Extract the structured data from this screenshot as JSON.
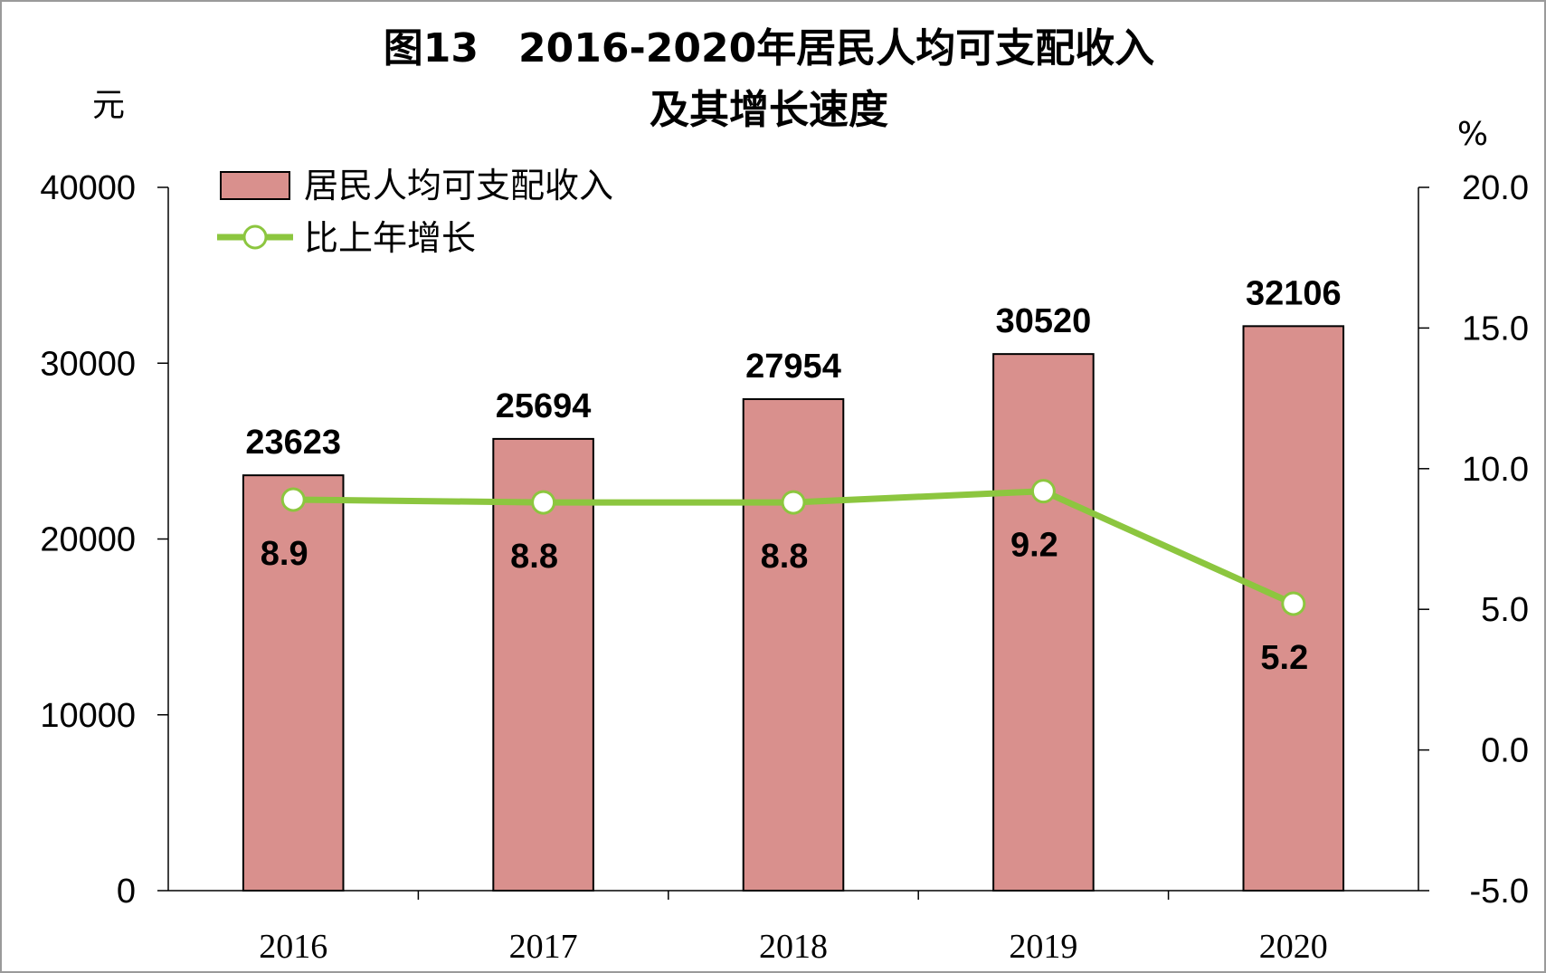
{
  "chart_data": {
    "type": "bar",
    "title_line1": "图13　2016-2020年居民人均可支配收入",
    "title_line2": "及其增长速度",
    "y_left_unit": "元",
    "y_right_unit": "%",
    "categories": [
      "2016",
      "2017",
      "2018",
      "2019",
      "2020"
    ],
    "series": [
      {
        "name": "居民人均可支配收入",
        "kind": "bar",
        "axis": "left",
        "values": [
          23623,
          25694,
          27954,
          30520,
          32106
        ],
        "value_labels": [
          "23623",
          "25694",
          "27954",
          "30520",
          "32106"
        ],
        "color": "#d9908d"
      },
      {
        "name": "比上年增长",
        "kind": "line",
        "axis": "right",
        "values": [
          8.9,
          8.8,
          8.8,
          9.2,
          5.2
        ],
        "value_labels": [
          "8.9",
          "8.8",
          "8.8",
          "9.2",
          "5.2"
        ],
        "color": "#8cc63f"
      }
    ],
    "y_left": {
      "min": 0,
      "max": 40000,
      "ticks": [
        0,
        10000,
        20000,
        30000,
        40000
      ],
      "tick_labels": [
        "0",
        "10000",
        "20000",
        "30000",
        "40000"
      ]
    },
    "y_right": {
      "min": -5,
      "max": 20,
      "ticks": [
        -5,
        0,
        5,
        10,
        15,
        20
      ],
      "tick_labels": [
        "-5.0",
        "0.0",
        "5.0",
        "10.0",
        "15.0",
        "20.0"
      ]
    },
    "legend_position": "top-left",
    "grid": false
  }
}
